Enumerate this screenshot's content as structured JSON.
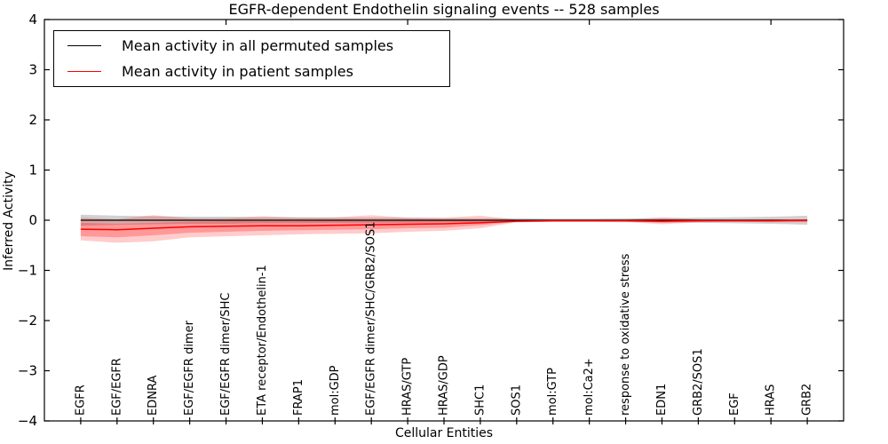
{
  "legend": {
    "items": [
      {
        "label": "Mean activity in all permuted samples",
        "color": "#000000"
      },
      {
        "label": "Mean activity in patient samples",
        "color": "#ff0000"
      }
    ]
  },
  "chart_data": {
    "type": "line",
    "title": "EGFR-dependent Endothelin signaling events -- 528 samples",
    "sample_count": 528,
    "xlabel": "Cellular Entities",
    "ylabel": "Inferred Activity",
    "ylim": [
      -4,
      4
    ],
    "grid": false,
    "legend_position": "upper left",
    "ytick_values": [
      4,
      3,
      2,
      1,
      0,
      -1,
      -2,
      -3,
      -4
    ],
    "ytick_labels": [
      "4",
      "3",
      "2",
      "1",
      "0",
      "−1",
      "−2",
      "−3",
      "−4"
    ],
    "top_tick_indices": [
      4,
      9,
      14,
      19
    ],
    "categories": [
      "EGFR",
      "EGF/EGFR",
      "EDNRA",
      "EGF/EGFR dimer",
      "EGF/EGFR dimer/SHC",
      "ETA receptor/Endothelin-1",
      "FRAP1",
      "mol:GDP",
      "EGF/EGFR dimer/SHC/GRB2/SOS1",
      "HRAS/GTP",
      "HRAS/GDP",
      "SHC1",
      "SOS1",
      "mol:GTP",
      "mol:Ca2+",
      "response to oxidative stress",
      "EDN1",
      "GRB2/SOS1",
      "EGF",
      "HRAS",
      "GRB2"
    ],
    "zero_line": {
      "y": 0,
      "style": "dotted",
      "color": "#000000"
    },
    "series": [
      {
        "name": "Mean activity in all permuted samples",
        "color": "#000000",
        "line_width": 1.2,
        "values": [
          0,
          0,
          0,
          0,
          0,
          0,
          0,
          0,
          0,
          0,
          0,
          0,
          0,
          0,
          0,
          0,
          0,
          0,
          0,
          0,
          0
        ],
        "band_color": "#999999",
        "bands": [
          {
            "opacity": 0.45,
            "upper": [
              0.11,
              0.09,
              0.08,
              0.07,
              0.07,
              0.06,
              0.06,
              0.05,
              0.05,
              0.05,
              0.04,
              0.04,
              0.04,
              0.03,
              0.03,
              0.04,
              0.04,
              0.05,
              0.06,
              0.07,
              0.09
            ],
            "lower": [
              -0.11,
              -0.09,
              -0.08,
              -0.07,
              -0.07,
              -0.06,
              -0.06,
              -0.05,
              -0.05,
              -0.05,
              -0.04,
              -0.04,
              -0.04,
              -0.03,
              -0.03,
              -0.04,
              -0.04,
              -0.05,
              -0.06,
              -0.07,
              -0.09
            ]
          }
        ]
      },
      {
        "name": "Mean activity in patient samples",
        "color": "#ff0000",
        "line_width": 1.5,
        "values": [
          -0.18,
          -0.19,
          -0.16,
          -0.13,
          -0.12,
          -0.11,
          -0.11,
          -0.1,
          -0.09,
          -0.08,
          -0.07,
          -0.05,
          -0.02,
          -0.01,
          -0.01,
          -0.01,
          -0.02,
          -0.01,
          -0.01,
          -0.01,
          0.0
        ],
        "band_color": "#ff0000",
        "bands": [
          {
            "opacity": 0.2,
            "upper": [
              0.05,
              0.02,
              0.1,
              0.04,
              0.04,
              0.08,
              0.05,
              0.06,
              0.1,
              0.05,
              0.05,
              0.09,
              0.01,
              0.01,
              0.01,
              0.01,
              0.06,
              0.02,
              0.01,
              0.02,
              0.02
            ],
            "lower": [
              -0.4,
              -0.45,
              -0.42,
              -0.34,
              -0.32,
              -0.3,
              -0.28,
              -0.27,
              -0.26,
              -0.23,
              -0.21,
              -0.16,
              -0.04,
              -0.03,
              -0.03,
              -0.03,
              -0.08,
              -0.04,
              -0.03,
              -0.04,
              -0.04
            ]
          },
          {
            "opacity": 0.25,
            "upper": [
              -0.05,
              -0.07,
              -0.05,
              -0.03,
              -0.02,
              -0.02,
              -0.02,
              -0.01,
              -0.01,
              -0.01,
              0.0,
              -0.01,
              0.0,
              0.0,
              0.0,
              0.0,
              0.02,
              0.01,
              0.0,
              0.01,
              0.01
            ],
            "lower": [
              -0.32,
              -0.34,
              -0.3,
              -0.25,
              -0.23,
              -0.21,
              -0.2,
              -0.19,
              -0.18,
              -0.16,
              -0.15,
              -0.1,
              -0.03,
              -0.02,
              -0.02,
              -0.02,
              -0.05,
              -0.03,
              -0.02,
              -0.03,
              -0.03
            ]
          }
        ]
      }
    ]
  }
}
